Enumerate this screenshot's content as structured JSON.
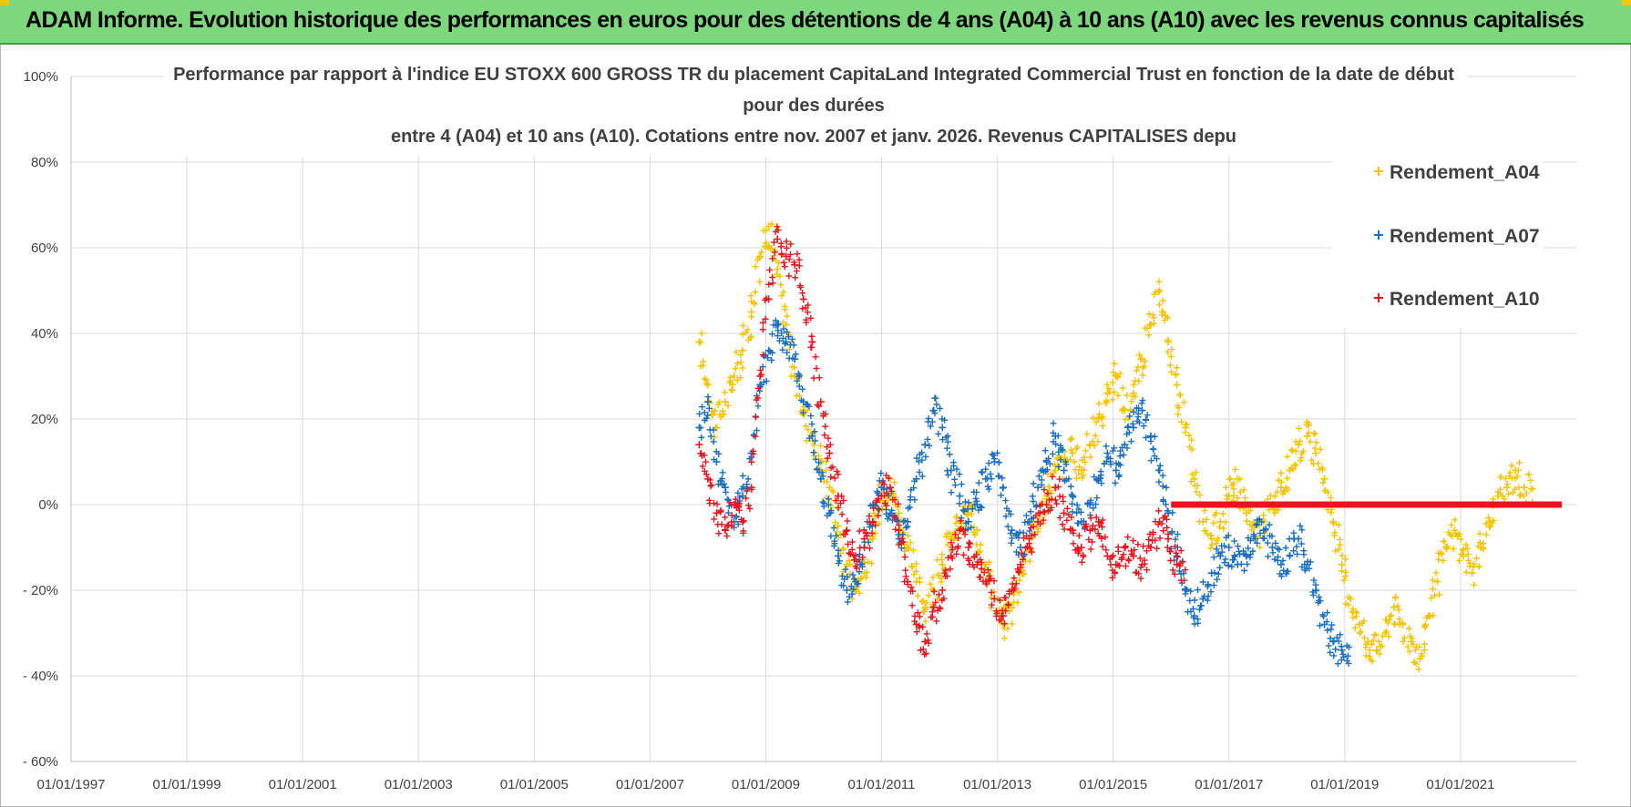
{
  "header": {
    "title": "ADAM Informe. Evolution historique des performances en euros pour des détentions de 4 ans (A04) à 10 ans (A10) avec les revenus connus capitalisés"
  },
  "chart_data": {
    "type": "scatter",
    "title_lines": [
      "Performance par rapport à l'indice EU STOXX 600 GROSS TR  du placement CapitaLand Integrated Commercial Trust en fonction de la date de début",
      "pour des durées",
      "entre 4 (A04) et 10 ans (A10). Cotations entre nov. 2007 et janv. 2026. Revenus CAPITALISES depu"
    ],
    "xlabel": "",
    "ylabel": "",
    "x_tick_labels": [
      "01/01/1997",
      "01/01/1999",
      "01/01/2001",
      "01/01/2003",
      "01/01/2005",
      "01/01/2007",
      "01/01/2009",
      "01/01/2011",
      "01/01/2013",
      "01/01/2015",
      "01/01/2017",
      "01/01/2019",
      "01/01/2021"
    ],
    "y_tick_labels": [
      "100%",
      "80%",
      "60%",
      "40%",
      "20%",
      "0%",
      "- 20%",
      "- 40%",
      "- 60%"
    ],
    "y_tick_values": [
      100,
      80,
      60,
      40,
      20,
      0,
      -20,
      -40,
      -60
    ],
    "xlim": [
      1997.0,
      2023.0
    ],
    "ylim": [
      -60,
      100
    ],
    "grid": true,
    "legend_position": "top-right",
    "marker": "+",
    "series": [
      {
        "name": "Rendement_A04",
        "color": "#f5c400",
        "x": [
          2007.85,
          2008.0,
          2008.15,
          2008.3,
          2008.45,
          2008.6,
          2008.75,
          2008.9,
          2009.05,
          2009.2,
          2009.35,
          2009.5,
          2009.65,
          2009.8,
          2009.95,
          2010.1,
          2010.25,
          2010.4,
          2010.55,
          2010.7,
          2010.85,
          2011.0,
          2011.15,
          2011.3,
          2011.45,
          2011.6,
          2011.75,
          2011.9,
          2012.05,
          2012.2,
          2012.35,
          2012.5,
          2012.65,
          2012.8,
          2012.95,
          2013.1,
          2013.25,
          2013.4,
          2013.55,
          2013.7,
          2013.85,
          2014.0,
          2014.15,
          2014.3,
          2014.45,
          2014.6,
          2014.75,
          2014.9,
          2015.05,
          2015.2,
          2015.35,
          2015.5,
          2015.65,
          2015.8,
          2015.95,
          2016.1,
          2016.25,
          2016.4,
          2016.55,
          2016.7,
          2016.85,
          2017.0,
          2017.15,
          2017.3,
          2017.45,
          2017.6,
          2017.75,
          2017.9,
          2018.05,
          2018.2,
          2018.35,
          2018.5,
          2018.65,
          2018.8,
          2018.95,
          2019.1,
          2019.25,
          2019.4,
          2019.55,
          2019.7,
          2019.85,
          2020.0,
          2020.15,
          2020.3,
          2020.45,
          2020.6,
          2020.75,
          2020.9,
          2021.05,
          2021.2,
          2021.35,
          2021.5,
          2021.65,
          2021.8,
          2021.95,
          2022.1
        ],
        "y": [
          38,
          28,
          18,
          24,
          30,
          36,
          45,
          58,
          65,
          55,
          42,
          30,
          22,
          16,
          10,
          4,
          -5,
          -14,
          -20,
          -16,
          -8,
          2,
          6,
          -2,
          -10,
          -18,
          -24,
          -20,
          -14,
          -8,
          -4,
          -2,
          -6,
          -14,
          -22,
          -28,
          -24,
          -16,
          -10,
          -4,
          2,
          8,
          10,
          12,
          8,
          14,
          20,
          26,
          30,
          22,
          26,
          34,
          42,
          50,
          38,
          28,
          18,
          6,
          -4,
          -8,
          -4,
          2,
          6,
          -2,
          -8,
          -4,
          0,
          4,
          8,
          14,
          16,
          12,
          6,
          -4,
          -14,
          -22,
          -28,
          -32,
          -34,
          -30,
          -24,
          -28,
          -32,
          -36,
          -26,
          -18,
          -10,
          -6,
          -12,
          -16,
          -10,
          -4,
          2,
          4,
          8,
          4
        ]
      },
      {
        "name": "Rendement_A07",
        "color": "#1a6fc0",
        "x": [
          2007.85,
          2008.0,
          2008.15,
          2008.3,
          2008.45,
          2008.6,
          2008.75,
          2008.9,
          2009.05,
          2009.2,
          2009.35,
          2009.5,
          2009.65,
          2009.8,
          2009.95,
          2010.1,
          2010.25,
          2010.4,
          2010.55,
          2010.7,
          2010.85,
          2011.0,
          2011.15,
          2011.3,
          2011.45,
          2011.6,
          2011.75,
          2011.9,
          2012.05,
          2012.2,
          2012.35,
          2012.5,
          2012.65,
          2012.8,
          2012.95,
          2013.1,
          2013.25,
          2013.4,
          2013.55,
          2013.7,
          2013.85,
          2014.0,
          2014.15,
          2014.3,
          2014.45,
          2014.6,
          2014.75,
          2014.9,
          2015.05,
          2015.2,
          2015.35,
          2015.5,
          2015.65,
          2015.8,
          2015.95,
          2016.1,
          2016.25,
          2016.4,
          2016.55,
          2016.7,
          2016.85,
          2017.0,
          2017.15,
          2017.3,
          2017.45,
          2017.6,
          2017.75,
          2017.9,
          2018.05,
          2018.2,
          2018.35,
          2018.5,
          2018.65,
          2018.8,
          2018.95
        ],
        "y": [
          18,
          24,
          10,
          4,
          -4,
          2,
          12,
          28,
          36,
          42,
          38,
          34,
          24,
          16,
          6,
          -2,
          -12,
          -20,
          -18,
          -10,
          0,
          4,
          -2,
          -8,
          -4,
          6,
          14,
          22,
          18,
          8,
          2,
          -4,
          0,
          6,
          10,
          4,
          -6,
          -10,
          -4,
          4,
          10,
          16,
          8,
          2,
          -4,
          0,
          6,
          12,
          8,
          14,
          18,
          22,
          16,
          8,
          -2,
          -12,
          -20,
          -26,
          -22,
          -16,
          -12,
          -10,
          -14,
          -12,
          -8,
          -6,
          -10,
          -14,
          -12,
          -8,
          -14,
          -20,
          -28,
          -32,
          -34
        ]
      },
      {
        "name": "Rendement_A10",
        "color": "#e8141e",
        "x": [
          2007.85,
          2008.0,
          2008.15,
          2008.3,
          2008.45,
          2008.6,
          2008.75,
          2008.9,
          2009.05,
          2009.2,
          2009.35,
          2009.5,
          2009.65,
          2009.8,
          2009.95,
          2010.1,
          2010.25,
          2010.4,
          2010.55,
          2010.7,
          2010.85,
          2011.0,
          2011.15,
          2011.3,
          2011.45,
          2011.6,
          2011.75,
          2011.9,
          2012.05,
          2012.2,
          2012.35,
          2012.5,
          2012.65,
          2012.8,
          2012.95,
          2013.1,
          2013.25,
          2013.4,
          2013.55,
          2013.7,
          2013.85,
          2014.0,
          2014.15,
          2014.3,
          2014.45,
          2014.6,
          2014.75,
          2014.9,
          2015.05,
          2015.2,
          2015.35,
          2015.5,
          2015.65,
          2015.8,
          2015.95,
          2016.1
        ],
        "y": [
          14,
          6,
          -2,
          -6,
          0,
          -4,
          4,
          30,
          48,
          62,
          58,
          56,
          48,
          38,
          24,
          12,
          2,
          -6,
          -12,
          -8,
          -4,
          2,
          4,
          -6,
          -18,
          -28,
          -32,
          -24,
          -20,
          -12,
          -6,
          -10,
          -14,
          -18,
          -22,
          -26,
          -20,
          -14,
          -8,
          -4,
          0,
          4,
          -2,
          -6,
          -10,
          -6,
          -4,
          -12,
          -14,
          -10,
          -12,
          -14,
          -10,
          -4,
          -8,
          -14
        ]
      }
    ],
    "flat_line": {
      "series": "Rendement_A10",
      "x_start": 2016.0,
      "x_end": 2022.75,
      "y": 0
    }
  }
}
